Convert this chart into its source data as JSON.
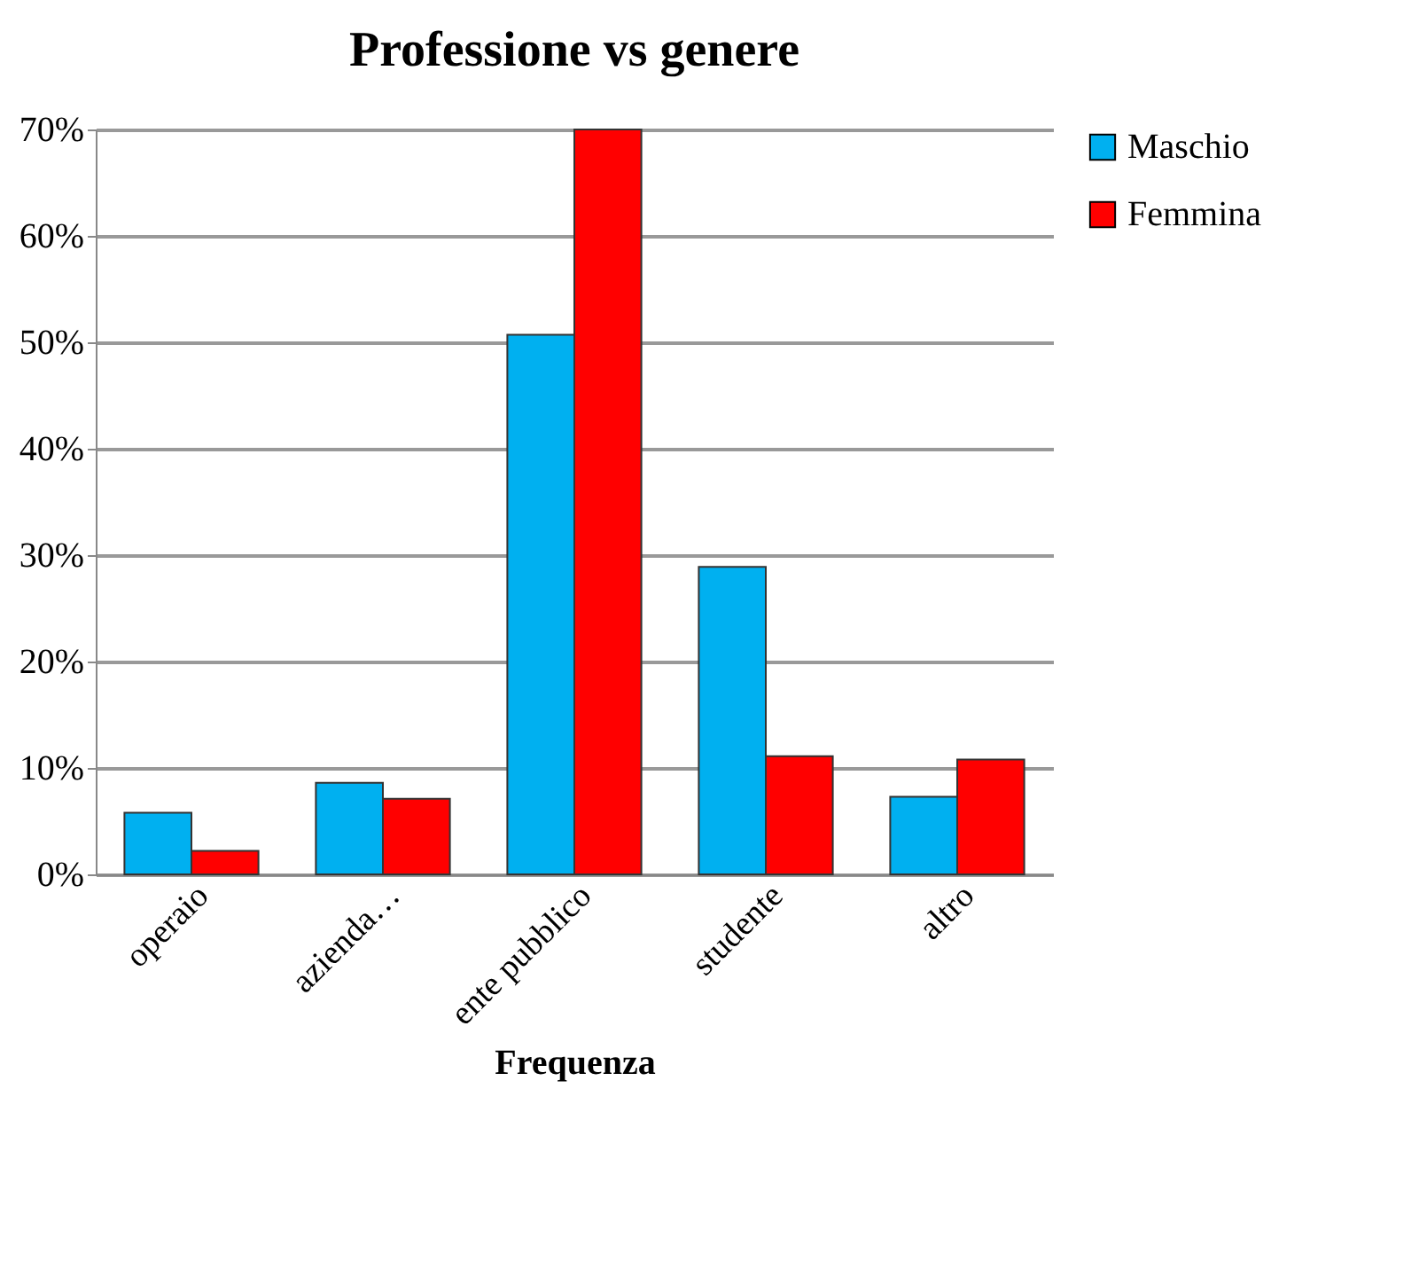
{
  "chart_data": {
    "type": "bar",
    "title": "Professione vs genere",
    "xlabel": "Frequenza",
    "categories": [
      "operaio",
      "azienda…",
      "ente pubblico",
      "studente",
      "altro"
    ],
    "series": [
      {
        "name": "Maschio",
        "color": "#00b0f0",
        "values": [
          5.8,
          8.6,
          50.7,
          28.9,
          7.3
        ]
      },
      {
        "name": "Femmina",
        "color": "#ff0000",
        "values": [
          2.2,
          7.1,
          70,
          11.1,
          10.8
        ]
      }
    ],
    "ylim": [
      0,
      70
    ],
    "yticks": [
      {
        "value": 0,
        "label": "0%"
      },
      {
        "value": 10,
        "label": "10%"
      },
      {
        "value": 20,
        "label": "20%"
      },
      {
        "value": 30,
        "label": "30%"
      },
      {
        "value": 40,
        "label": "40%"
      },
      {
        "value": 50,
        "label": "50%"
      },
      {
        "value": 60,
        "label": "60%"
      },
      {
        "value": 70,
        "label": "70%"
      }
    ],
    "grid": "y",
    "legend": "right"
  }
}
